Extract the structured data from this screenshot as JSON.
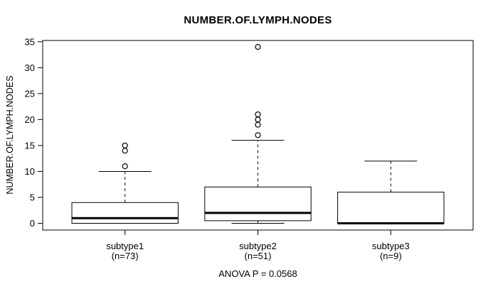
{
  "title": "NUMBER.OF.LYMPH.NODES",
  "colors": {
    "stroke": "#000000",
    "background": "#ffffff"
  },
  "chart_data": {
    "type": "boxplot",
    "title": "NUMBER.OF.LYMPH.NODES",
    "ylabel": "NUMBER.OF.LYMPH.NODES",
    "xlabel": "",
    "ylim": [
      0,
      35
    ],
    "yticks": [
      0,
      5,
      10,
      15,
      20,
      25,
      30,
      35
    ],
    "grid": "off",
    "annotation": "ANOVA P = 0.0568",
    "groups": [
      {
        "label": "subtype1",
        "sublabel": "(n=73)",
        "n": 73,
        "whisker_low": 0,
        "q1": 0,
        "median": 1,
        "q3": 4,
        "whisker_high": 10,
        "outliers": [
          11,
          14,
          15
        ]
      },
      {
        "label": "subtype2",
        "sublabel": "(n=51)",
        "n": 51,
        "whisker_low": 0,
        "q1": 0.5,
        "median": 2,
        "q3": 7,
        "whisker_high": 16,
        "outliers": [
          17,
          19,
          20,
          21,
          34
        ]
      },
      {
        "label": "subtype3",
        "sublabel": "(n=9)",
        "n": 9,
        "whisker_low": 0,
        "q1": 0,
        "median": 0,
        "q3": 6,
        "whisker_high": 12,
        "outliers": []
      }
    ]
  }
}
